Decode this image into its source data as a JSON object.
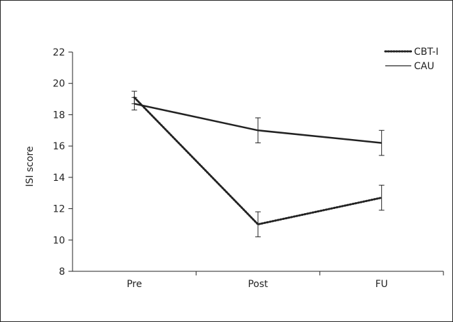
{
  "chart_data": {
    "type": "line",
    "title": "",
    "xlabel": "",
    "ylabel": "ISI score",
    "ylim": [
      8,
      22
    ],
    "yticks": [
      8,
      10,
      12,
      14,
      16,
      18,
      20,
      22
    ],
    "categories": [
      "Pre",
      "Post",
      "FU"
    ],
    "grid": false,
    "legend_position": "top-right",
    "series": [
      {
        "name": "CBT-I",
        "style": "dotted",
        "color": "#222222",
        "values": [
          19.1,
          11.0,
          12.7
        ],
        "error": [
          0.4,
          0.8,
          0.8
        ]
      },
      {
        "name": "CAU",
        "style": "solid",
        "color": "#222222",
        "values": [
          18.7,
          17.0,
          16.2
        ],
        "error": [
          0.4,
          0.8,
          0.8
        ]
      }
    ]
  }
}
